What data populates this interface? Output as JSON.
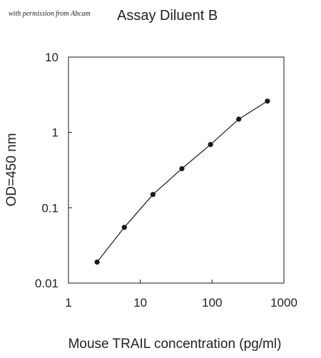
{
  "credit": "with permission from Abcam",
  "chart_data": {
    "type": "line",
    "title": "Assay Diluent B",
    "xlabel": "Mouse TRAIL concentration (pg/ml)",
    "ylabel": "OD=450 nm",
    "x_scale": "log",
    "y_scale": "log",
    "xlim": [
      1,
      1000
    ],
    "ylim": [
      0.01,
      10
    ],
    "x_ticks": [
      1,
      10,
      100,
      1000
    ],
    "x_tick_labels": [
      "1",
      "10",
      "100",
      "1000"
    ],
    "y_ticks": [
      0.01,
      0.1,
      1,
      10
    ],
    "y_tick_labels": [
      "0.01",
      "0.1",
      "1",
      "10"
    ],
    "grid": false,
    "legend": "none",
    "series": [
      {
        "x": [
          2.5,
          6,
          15,
          38,
          95,
          235,
          590
        ],
        "y": [
          0.019,
          0.055,
          0.15,
          0.33,
          0.69,
          1.5,
          2.6
        ],
        "color": "#1a1a1a",
        "marker": "circle"
      }
    ]
  }
}
